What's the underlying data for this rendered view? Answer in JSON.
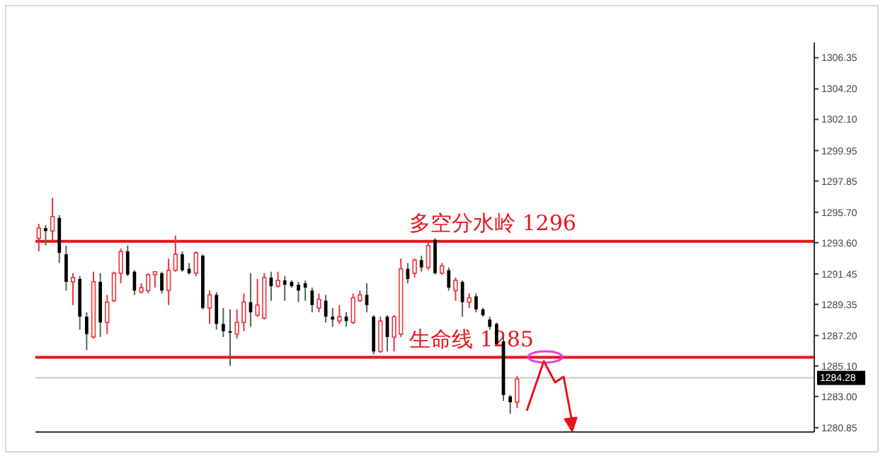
{
  "chart_data": {
    "type": "candlestick",
    "categories": [
      null,
      null,
      null,
      null,
      null,
      null,
      null,
      null,
      null,
      null,
      null,
      null,
      null,
      null,
      null,
      null,
      null,
      null,
      null,
      null,
      null,
      null,
      null,
      null,
      null,
      null,
      null,
      null,
      null,
      null,
      null,
      null,
      null,
      null,
      null,
      null,
      null,
      null,
      null,
      null,
      null,
      null,
      null,
      null,
      null,
      null,
      null,
      null,
      null,
      null,
      null,
      null,
      null,
      null,
      null,
      null,
      null,
      null,
      null,
      null,
      null,
      null,
      null,
      null,
      null,
      null,
      null,
      null,
      null,
      null,
      null,
      null,
      null,
      null,
      null,
      null,
      null,
      null,
      null,
      null,
      null,
      null,
      null,
      null,
      null,
      null,
      null,
      null,
      null,
      null,
      null,
      null,
      null,
      null,
      null,
      null,
      null,
      null,
      null,
      null,
      null,
      null,
      null,
      null,
      null,
      null,
      null,
      null,
      null,
      null,
      null,
      null,
      null,
      null
    ],
    "ohlc": [
      [
        1293.9,
        1294.9,
        1293.0,
        1294.6
      ],
      [
        1294.6,
        1294.8,
        1293.4,
        1294.4
      ],
      [
        1294.4,
        1296.7,
        1293.7,
        1295.4
      ],
      [
        1295.3,
        1295.5,
        1292.2,
        1292.9
      ],
      [
        1292.8,
        1293.4,
        1290.3,
        1290.9
      ],
      [
        1290.9,
        1291.5,
        1289.3,
        1291.2
      ],
      [
        1291.1,
        1291.3,
        1287.6,
        1288.5
      ],
      [
        1288.5,
        1288.8,
        1286.2,
        1287.3
      ],
      [
        1287.1,
        1291.6,
        1287.0,
        1290.9
      ],
      [
        1290.9,
        1291.5,
        1287.1,
        1288.1
      ],
      [
        1288.1,
        1290.0,
        1287.3,
        1289.5
      ],
      [
        1289.6,
        1291.6,
        1289.5,
        1291.5
      ],
      [
        1291.5,
        1293.2,
        1290.8,
        1293.0
      ],
      [
        1293.0,
        1293.4,
        1291.3,
        1291.4
      ],
      [
        1291.6,
        1291.7,
        1290.0,
        1290.3
      ],
      [
        1290.2,
        1290.8,
        1290.1,
        1290.5
      ],
      [
        1290.3,
        1291.5,
        1290.1,
        1291.4
      ],
      [
        1291.4,
        1291.6,
        1290.5,
        1291.6
      ],
      [
        1291.5,
        1291.6,
        1290.1,
        1290.3
      ],
      [
        1290.3,
        1292.5,
        1289.3,
        1291.7
      ],
      [
        1291.7,
        1294.1,
        1291.6,
        1292.8
      ],
      [
        1292.8,
        1293.0,
        1291.6,
        1291.7
      ],
      [
        1291.8,
        1292.2,
        1291.4,
        1291.5
      ],
      [
        1291.5,
        1293.0,
        1291.3,
        1292.9
      ],
      [
        1292.7,
        1292.8,
        1289.0,
        1289.1
      ],
      [
        1289.1,
        1290.3,
        1288.0,
        1290.0
      ],
      [
        1290.0,
        1290.2,
        1287.6,
        1288.0
      ],
      [
        1288.0,
        1289.1,
        1287.1,
        1287.5
      ],
      [
        1287.5,
        1289.0,
        1285.1,
        1287.4
      ],
      [
        1287.3,
        1289.0,
        1287.0,
        1288.1
      ],
      [
        1288.1,
        1290.1,
        1287.5,
        1289.5
      ],
      [
        1289.5,
        1291.5,
        1287.8,
        1288.8
      ],
      [
        1288.6,
        1291.1,
        1288.5,
        1289.3
      ],
      [
        1288.4,
        1291.5,
        1288.3,
        1291.2
      ],
      [
        1291.2,
        1291.6,
        1289.6,
        1290.6
      ],
      [
        1290.6,
        1291.6,
        1290.5,
        1291.0
      ],
      [
        1291.0,
        1291.3,
        1289.6,
        1290.7
      ],
      [
        1290.9,
        1291.0,
        1290.5,
        1290.6
      ],
      [
        1290.7,
        1290.9,
        1289.5,
        1290.3
      ],
      [
        1290.8,
        1291.0,
        1289.6,
        1290.5
      ],
      [
        1290.3,
        1290.5,
        1288.8,
        1289.3
      ],
      [
        1289.1,
        1290.1,
        1288.8,
        1289.7
      ],
      [
        1289.6,
        1290.0,
        1288.1,
        1288.5
      ],
      [
        1288.5,
        1289.1,
        1287.8,
        1288.3
      ],
      [
        1288.2,
        1289.3,
        1288.0,
        1288.5
      ],
      [
        1288.5,
        1288.8,
        1287.8,
        1288.2
      ],
      [
        1288.1,
        1290.1,
        1288.0,
        1289.8
      ],
      [
        1289.6,
        1290.3,
        1289.5,
        1290.0
      ],
      [
        1290.0,
        1290.8,
        1288.8,
        1289.3
      ],
      [
        1288.5,
        1288.6,
        1285.9,
        1286.1
      ],
      [
        1286.1,
        1288.5,
        1286.0,
        1288.2
      ],
      [
        1288.5,
        1288.6,
        1286.1,
        1287.1
      ],
      [
        1287.1,
        1288.6,
        1286.1,
        1288.5
      ],
      [
        1287.3,
        1292.5,
        1287.1,
        1291.8
      ],
      [
        1291.8,
        1292.2,
        1290.8,
        1291.1
      ],
      [
        1291.5,
        1292.5,
        1291.2,
        1292.4
      ],
      [
        1292.4,
        1292.7,
        1291.6,
        1291.9
      ],
      [
        1291.9,
        1293.7,
        1291.7,
        1293.4
      ],
      [
        1293.8,
        1293.9,
        1291.4,
        1291.5
      ],
      [
        1291.5,
        1292.2,
        1291.4,
        1292.0
      ],
      [
        1291.7,
        1291.9,
        1290.3,
        1290.5
      ],
      [
        1290.3,
        1291.2,
        1289.6,
        1291.0
      ],
      [
        1290.9,
        1291.0,
        1288.5,
        1289.5
      ],
      [
        1289.5,
        1290.1,
        1289.1,
        1289.8
      ],
      [
        1289.9,
        1290.1,
        1288.8,
        1289.0
      ],
      [
        1289.0,
        1289.1,
        1288.5,
        1288.6
      ],
      [
        1288.3,
        1288.5,
        1287.6,
        1287.8
      ],
      [
        1288.0,
        1288.1,
        1286.6,
        1286.6
      ],
      [
        1286.8,
        1287.3,
        1282.7,
        1283.1
      ],
      [
        1283.0,
        1283.1,
        1281.8,
        1282.6
      ],
      [
        1282.6,
        1284.4,
        1282.2,
        1284.2
      ],
      null,
      null,
      null,
      null,
      null,
      null,
      null,
      null,
      null,
      null,
      null,
      null,
      null,
      null,
      null,
      null,
      null,
      null,
      null,
      null,
      null,
      null,
      null,
      null,
      null,
      null,
      null,
      null,
      null,
      null,
      null,
      null,
      null,
      null,
      null,
      null,
      null,
      null,
      null,
      null,
      null,
      null,
      null
    ],
    "ylim": [
      1280.55,
      1307.4
    ],
    "yticks": [
      1280.85,
      {
        "value": 1283,
        "label": "1283.00"
      },
      {
        "value": 1285.1,
        "label": "1285.10"
      },
      {
        "value": 1287.2,
        "label": "1287.20"
      },
      1289.35,
      1291.45,
      {
        "value": 1293.6,
        "label": "1293.60"
      },
      {
        "value": 1295.7,
        "label": "1295.70"
      },
      1297.85,
      1299.95,
      {
        "value": 1302.1,
        "label": "1302.10"
      },
      {
        "value": 1304.2,
        "label": "1304.20"
      },
      1306.35
    ],
    "ref_lines": [
      {
        "axis": "y",
        "value": 1293.7,
        "label": "多空分水岭 1296",
        "color": "#e8141c",
        "line_style": "solid"
      },
      {
        "axis": "y",
        "value": 1285.7,
        "label": "生命线 1285",
        "color": "#e8141c",
        "line_style": "solid"
      },
      {
        "axis": "y",
        "value": 1284.28,
        "label": "1284.28",
        "line_style": "solid"
      }
    ],
    "tick_labels": "y",
    "grid": false
  }
}
